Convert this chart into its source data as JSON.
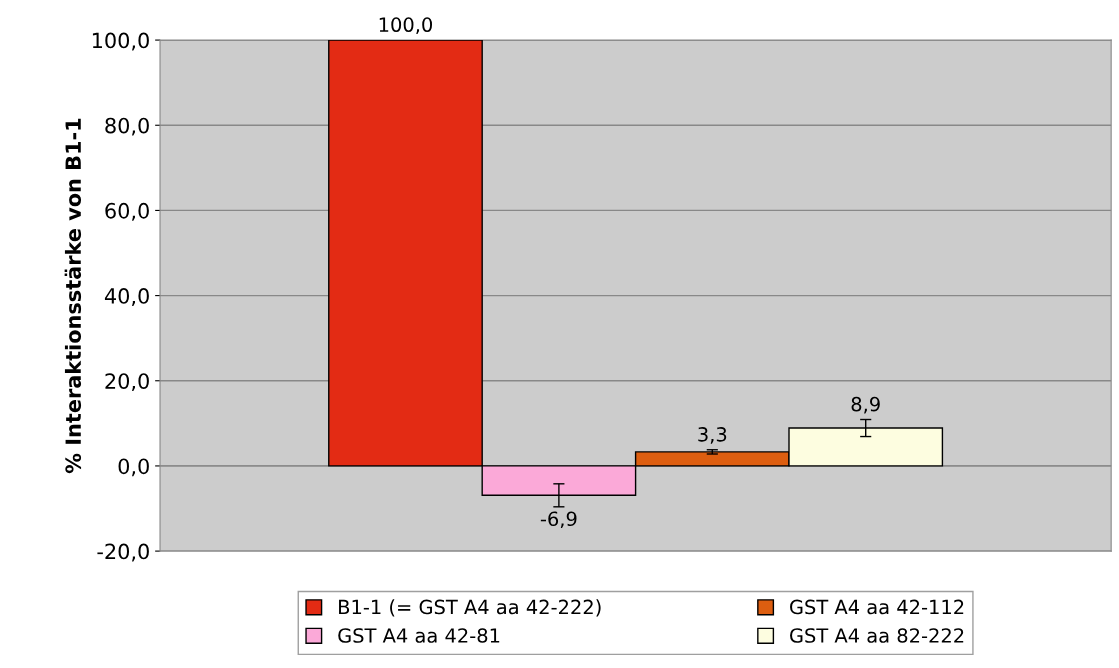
{
  "chart_data": {
    "type": "bar",
    "ylabel": "% Interaktionsstärke von B1-1",
    "categories": [
      null
    ],
    "series": [
      {
        "name": "B1-1 (= GST A4 aa 42-222)",
        "color": "#e32b14",
        "values": [
          100.0
        ],
        "value_labels": [
          "100,0"
        ]
      },
      {
        "name": "GST A4 aa 42-81",
        "color": "#fba9d8",
        "values": [
          -6.9
        ],
        "errors": [
          2.7
        ],
        "value_labels": [
          "-6,9"
        ]
      },
      {
        "name": "GST A4 aa 42-112",
        "color": "#dd5e10",
        "values": [
          3.3
        ],
        "errors": [
          0.5
        ],
        "value_labels": [
          "3,3"
        ]
      },
      {
        "name": "GST A4 aa 82-222",
        "color": "#fdfde0",
        "values": [
          8.9
        ],
        "errors": [
          2.0
        ],
        "value_labels": [
          "8,9"
        ]
      }
    ],
    "ylim": [
      -20,
      100
    ],
    "yticks": [
      {
        "value": -20,
        "label": "-20,0"
      },
      {
        "value": 0,
        "label": "0,0"
      },
      {
        "value": 20,
        "label": "20,0"
      },
      {
        "value": 40,
        "label": "40,0"
      },
      {
        "value": 60,
        "label": "60,0"
      },
      {
        "value": 80,
        "label": "80,0"
      },
      {
        "value": 100,
        "label": "100,0"
      }
    ],
    "grid": "y",
    "legend": "bottom"
  }
}
